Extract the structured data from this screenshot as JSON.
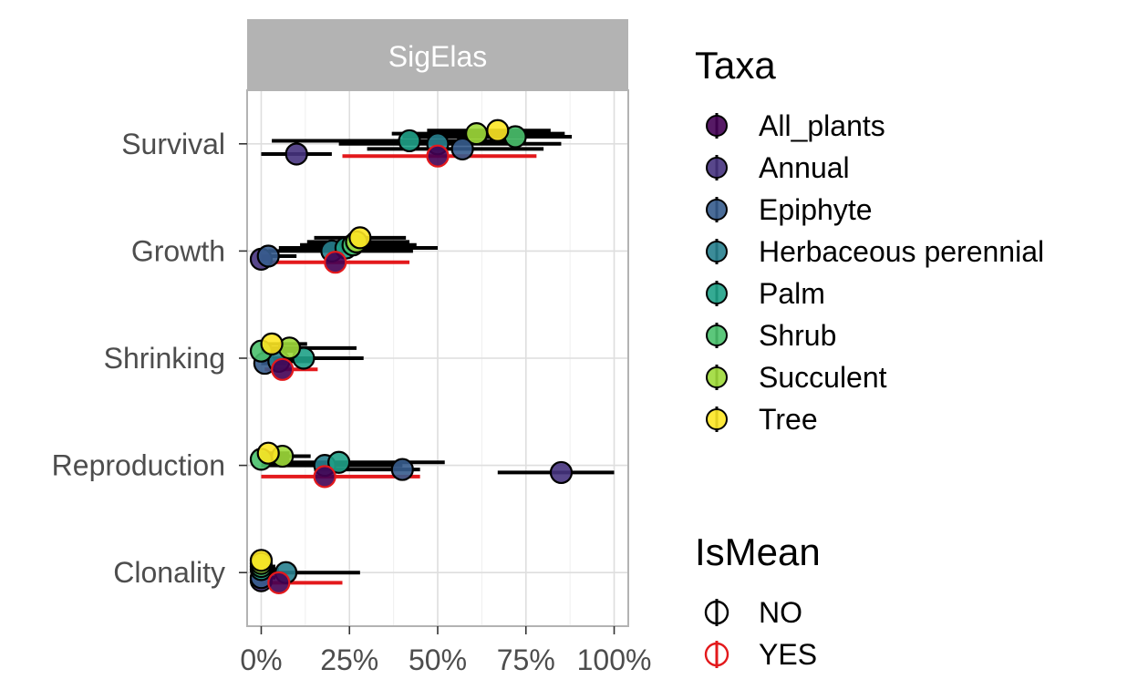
{
  "chart_data": {
    "type": "scatter",
    "facet_title": "SigElas",
    "categories": [
      "Survival",
      "Growth",
      "Shrinking",
      "Reproduction",
      "Clonality"
    ],
    "x_ticks": [
      "0%",
      "25%",
      "50%",
      "75%",
      "100%"
    ],
    "xlim": [
      -0.04,
      1.04
    ],
    "taxa": [
      {
        "name": "All_plants",
        "color": "#440154"
      },
      {
        "name": "Annual",
        "color": "#46337E"
      },
      {
        "name": "Epiphyte",
        "color": "#365C8D"
      },
      {
        "name": "Herbaceous perennial",
        "color": "#277F8E"
      },
      {
        "name": "Palm",
        "color": "#1FA187"
      },
      {
        "name": "Shrub",
        "color": "#4AC16D"
      },
      {
        "name": "Succulent",
        "color": "#9FDA3A"
      },
      {
        "name": "Tree",
        "color": "#FDE725"
      }
    ],
    "ismean": [
      {
        "name": "NO",
        "color": "#000000"
      },
      {
        "name": "YES",
        "color": "#E3191C"
      }
    ],
    "legend_titles": {
      "taxa": "Taxa",
      "ismean": "IsMean"
    },
    "points": [
      {
        "category": "Survival",
        "taxon": "Annual",
        "mean": "NO",
        "value": 0.1,
        "low": 0.0,
        "high": 0.2,
        "offset": -0.1
      },
      {
        "category": "Survival",
        "taxon": "Epiphyte",
        "mean": "NO",
        "value": 0.57,
        "low": 0.3,
        "high": 0.8,
        "offset": -0.05
      },
      {
        "category": "Survival",
        "taxon": "Herbaceous perennial",
        "mean": "NO",
        "value": 0.5,
        "low": 0.22,
        "high": 0.85,
        "offset": 0.0
      },
      {
        "category": "Survival",
        "taxon": "Palm",
        "mean": "NO",
        "value": 0.42,
        "low": 0.03,
        "high": 0.75,
        "offset": 0.03
      },
      {
        "category": "Survival",
        "taxon": "Shrub",
        "mean": "NO",
        "value": 0.72,
        "low": 0.4,
        "high": 0.88,
        "offset": 0.07
      },
      {
        "category": "Survival",
        "taxon": "Succulent",
        "mean": "NO",
        "value": 0.61,
        "low": 0.37,
        "high": 0.86,
        "offset": 0.1
      },
      {
        "category": "Survival",
        "taxon": "Tree",
        "mean": "NO",
        "value": 0.67,
        "low": 0.47,
        "high": 0.82,
        "offset": 0.13
      },
      {
        "category": "Survival",
        "taxon": "All_plants",
        "mean": "YES",
        "value": 0.5,
        "low": 0.23,
        "high": 0.78,
        "offset": -0.12
      },
      {
        "category": "Growth",
        "taxon": "Annual",
        "mean": "NO",
        "value": 0.0,
        "low": 0.0,
        "high": 0.03,
        "offset": -0.08
      },
      {
        "category": "Growth",
        "taxon": "Epiphyte",
        "mean": "NO",
        "value": 0.02,
        "low": 0.0,
        "high": 0.1,
        "offset": -0.05
      },
      {
        "category": "Growth",
        "taxon": "Herbaceous perennial",
        "mean": "NO",
        "value": 0.2,
        "low": 0.02,
        "high": 0.43,
        "offset": 0.0
      },
      {
        "category": "Growth",
        "taxon": "Palm",
        "mean": "NO",
        "value": 0.24,
        "low": 0.05,
        "high": 0.5,
        "offset": 0.03
      },
      {
        "category": "Growth",
        "taxon": "Shrub",
        "mean": "NO",
        "value": 0.26,
        "low": 0.11,
        "high": 0.44,
        "offset": 0.06
      },
      {
        "category": "Growth",
        "taxon": "Succulent",
        "mean": "NO",
        "value": 0.27,
        "low": 0.13,
        "high": 0.42,
        "offset": 0.09
      },
      {
        "category": "Growth",
        "taxon": "Tree",
        "mean": "NO",
        "value": 0.28,
        "low": 0.15,
        "high": 0.41,
        "offset": 0.13
      },
      {
        "category": "Growth",
        "taxon": "All_plants",
        "mean": "YES",
        "value": 0.21,
        "low": 0.02,
        "high": 0.42,
        "offset": -0.11
      },
      {
        "category": "Shrinking",
        "taxon": "Epiphyte",
        "mean": "NO",
        "value": 0.01,
        "low": 0.0,
        "high": 0.07,
        "offset": -0.05
      },
      {
        "category": "Shrinking",
        "taxon": "Herbaceous perennial",
        "mean": "NO",
        "value": 0.05,
        "low": 0.0,
        "high": 0.15,
        "offset": -0.03
      },
      {
        "category": "Shrinking",
        "taxon": "Palm",
        "mean": "NO",
        "value": 0.12,
        "low": 0.02,
        "high": 0.29,
        "offset": 0.0
      },
      {
        "category": "Shrinking",
        "taxon": "Shrub",
        "mean": "NO",
        "value": 0.0,
        "low": 0.0,
        "high": 0.1,
        "offset": 0.07
      },
      {
        "category": "Shrinking",
        "taxon": "Succulent",
        "mean": "NO",
        "value": 0.08,
        "low": 0.0,
        "high": 0.27,
        "offset": 0.1
      },
      {
        "category": "Shrinking",
        "taxon": "Tree",
        "mean": "NO",
        "value": 0.03,
        "low": 0.0,
        "high": 0.13,
        "offset": 0.14
      },
      {
        "category": "Shrinking",
        "taxon": "All_plants",
        "mean": "YES",
        "value": 0.06,
        "low": 0.01,
        "high": 0.16,
        "offset": -0.11
      },
      {
        "category": "Reproduction",
        "taxon": "Annual",
        "mean": "NO",
        "value": 0.85,
        "low": 0.67,
        "high": 1.0,
        "offset": -0.07
      },
      {
        "category": "Reproduction",
        "taxon": "Epiphyte",
        "mean": "NO",
        "value": 0.4,
        "low": 0.15,
        "high": 0.45,
        "offset": -0.04
      },
      {
        "category": "Reproduction",
        "taxon": "Herbaceous perennial",
        "mean": "NO",
        "value": 0.18,
        "low": 0.0,
        "high": 0.4,
        "offset": 0.0
      },
      {
        "category": "Reproduction",
        "taxon": "Palm",
        "mean": "NO",
        "value": 0.22,
        "low": 0.03,
        "high": 0.52,
        "offset": 0.03
      },
      {
        "category": "Reproduction",
        "taxon": "Shrub",
        "mean": "NO",
        "value": 0.0,
        "low": 0.0,
        "high": 0.08,
        "offset": 0.06
      },
      {
        "category": "Reproduction",
        "taxon": "Succulent",
        "mean": "NO",
        "value": 0.06,
        "low": 0.0,
        "high": 0.14,
        "offset": 0.09
      },
      {
        "category": "Reproduction",
        "taxon": "Tree",
        "mean": "NO",
        "value": 0.02,
        "low": 0.0,
        "high": 0.08,
        "offset": 0.12
      },
      {
        "category": "Reproduction",
        "taxon": "All_plants",
        "mean": "YES",
        "value": 0.18,
        "low": 0.0,
        "high": 0.45,
        "offset": -0.11
      },
      {
        "category": "Clonality",
        "taxon": "Annual",
        "mean": "NO",
        "value": 0.0,
        "low": 0.0,
        "high": 0.02,
        "offset": -0.08
      },
      {
        "category": "Clonality",
        "taxon": "Epiphyte",
        "mean": "NO",
        "value": 0.0,
        "low": 0.0,
        "high": 0.04,
        "offset": -0.05
      },
      {
        "category": "Clonality",
        "taxon": "Herbaceous perennial",
        "mean": "NO",
        "value": 0.07,
        "low": 0.0,
        "high": 0.28,
        "offset": 0.0
      },
      {
        "category": "Clonality",
        "taxon": "Palm",
        "mean": "NO",
        "value": 0.0,
        "low": 0.0,
        "high": 0.05,
        "offset": 0.03
      },
      {
        "category": "Clonality",
        "taxon": "Shrub",
        "mean": "NO",
        "value": 0.0,
        "low": 0.0,
        "high": 0.04,
        "offset": 0.06
      },
      {
        "category": "Clonality",
        "taxon": "Succulent",
        "mean": "NO",
        "value": 0.0,
        "low": 0.0,
        "high": 0.03,
        "offset": 0.09
      },
      {
        "category": "Clonality",
        "taxon": "Tree",
        "mean": "NO",
        "value": 0.0,
        "low": 0.0,
        "high": 0.02,
        "offset": 0.12
      },
      {
        "category": "Clonality",
        "taxon": "All_plants",
        "mean": "YES",
        "value": 0.05,
        "low": 0.0,
        "high": 0.23,
        "offset": -0.1
      }
    ]
  }
}
